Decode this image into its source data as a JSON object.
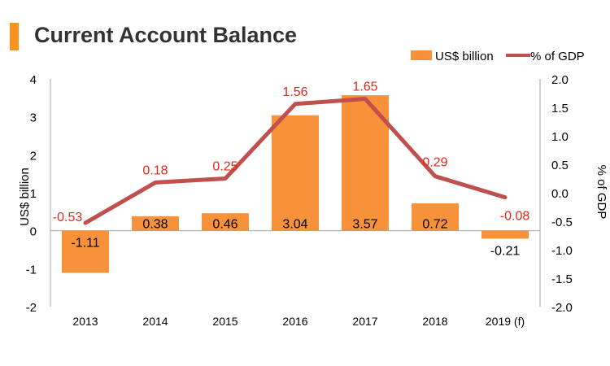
{
  "colors": {
    "bar": "#f7923a",
    "line": "#c0504d",
    "line_label": "#e3261c",
    "text": "#000000",
    "axis": "#a6a6a6"
  },
  "chart_data": {
    "type": "bar",
    "title": "Current Account Balance",
    "categories": [
      "2013",
      "2014",
      "2015",
      "2016",
      "2017",
      "2018",
      "2019 (f)"
    ],
    "series": [
      {
        "name": "US$ billion",
        "type": "bar",
        "axis": "left",
        "values": [
          -1.11,
          0.38,
          0.46,
          3.04,
          3.57,
          0.72,
          -0.21
        ],
        "labels": [
          "-1.11",
          "0.38",
          "0.46",
          "3.04",
          "3.57",
          "0.72",
          "-0.21"
        ]
      },
      {
        "name": "% of GDP",
        "type": "line",
        "axis": "right",
        "values": [
          -0.53,
          0.18,
          0.25,
          1.56,
          1.65,
          0.29,
          -0.08
        ],
        "labels": [
          "-0.53",
          "0.18",
          "0.25",
          "1.56",
          "1.65",
          "0.29",
          "-0.08"
        ]
      }
    ],
    "ylabel": "US$ billion",
    "y2label": "% of GDP",
    "ylim": [
      -2,
      4
    ],
    "y2lim": [
      -2.0,
      2.0
    ],
    "yticks": [
      "4",
      "3",
      "2",
      "1",
      "0",
      "-1",
      "-2"
    ],
    "y2ticks": [
      "2.0",
      "1.5",
      "1.0",
      "0.5",
      "0.0",
      "-0.5",
      "-1.0",
      "-1.5",
      "-2.0"
    ],
    "legend_position": "top-right",
    "grid": false
  }
}
